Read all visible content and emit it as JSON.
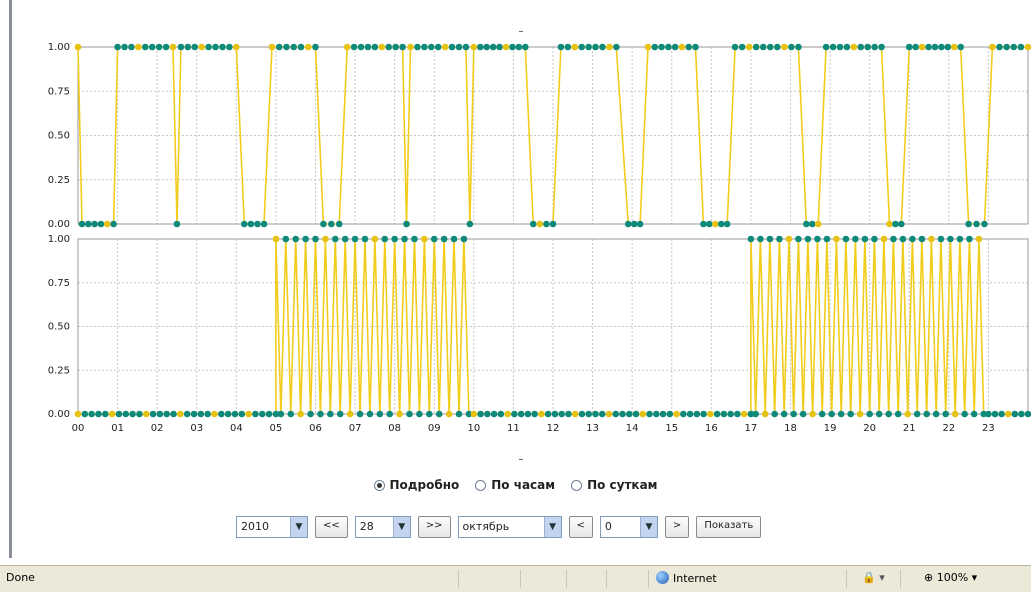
{
  "chart_data": [
    {
      "type": "line",
      "xlim": [
        0,
        24
      ],
      "ylim": [
        0,
        1
      ],
      "y_ticks": [
        "0.00",
        "0.25",
        "0.50",
        "0.75",
        "1.00"
      ],
      "line_color": "#f2cc1d",
      "marker_color": "#0f8a7a",
      "highlight_marker_color": "#e8c213",
      "segments": [
        [
          0.0,
          1
        ],
        [
          0.1,
          0
        ],
        [
          0.9,
          0
        ],
        [
          1.0,
          1
        ],
        [
          2.4,
          1
        ],
        [
          2.5,
          0
        ],
        [
          2.6,
          1
        ],
        [
          4.0,
          1
        ],
        [
          4.2,
          0
        ],
        [
          4.7,
          0
        ],
        [
          4.9,
          1
        ],
        [
          6.0,
          1
        ],
        [
          6.2,
          0
        ],
        [
          6.6,
          0
        ],
        [
          6.8,
          1
        ],
        [
          8.2,
          1
        ],
        [
          8.3,
          0
        ],
        [
          8.4,
          1
        ],
        [
          9.8,
          1
        ],
        [
          9.9,
          0
        ],
        [
          10.0,
          1
        ],
        [
          11.3,
          1
        ],
        [
          11.5,
          0
        ],
        [
          12.0,
          0
        ],
        [
          12.2,
          1
        ],
        [
          13.6,
          1
        ],
        [
          13.9,
          0
        ],
        [
          14.2,
          0
        ],
        [
          14.4,
          1
        ],
        [
          15.6,
          1
        ],
        [
          15.8,
          0
        ],
        [
          16.4,
          0
        ],
        [
          16.6,
          1
        ],
        [
          18.2,
          1
        ],
        [
          18.4,
          0
        ],
        [
          18.7,
          0
        ],
        [
          18.9,
          1
        ],
        [
          20.3,
          1
        ],
        [
          20.5,
          0
        ],
        [
          20.8,
          0
        ],
        [
          21.0,
          1
        ],
        [
          22.3,
          1
        ],
        [
          22.5,
          0
        ],
        [
          22.9,
          0
        ],
        [
          23.1,
          1
        ],
        [
          24.0,
          1
        ]
      ]
    },
    {
      "type": "line",
      "xlim": [
        0,
        24
      ],
      "ylim": [
        0,
        1
      ],
      "y_ticks": [
        "0.00",
        "0.25",
        "0.50",
        "0.75",
        "1.00"
      ],
      "x_ticks": [
        "00",
        "01",
        "02",
        "03",
        "04",
        "05",
        "06",
        "07",
        "08",
        "09",
        "10",
        "11",
        "12",
        "13",
        "14",
        "15",
        "16",
        "17",
        "18",
        "19",
        "20",
        "21",
        "22",
        "23"
      ],
      "line_color": "#f2cc1d",
      "marker_color": "#0f8a7a",
      "highlight_marker_color": "#e8c213",
      "base_segments": [
        [
          0.0,
          0
        ],
        [
          5.0,
          0
        ]
      ],
      "burst_ranges": [
        [
          5.0,
          10.0,
          0.25
        ],
        [
          17.0,
          23.0,
          0.24
        ]
      ],
      "tail_segments": [
        [
          10.0,
          0
        ],
        [
          17.0,
          0
        ],
        [
          23.0,
          0
        ],
        [
          24.0,
          0
        ]
      ]
    }
  ],
  "view_options": {
    "detail": "Подробно",
    "hours": "По часам",
    "days": "По суткам"
  },
  "controls": {
    "year": "2010",
    "day": "28",
    "month": "октябрь",
    "offset": "0",
    "prev_day": "<<",
    "next_day": ">>",
    "prev": "<",
    "next": ">",
    "show": "Показать"
  },
  "status": {
    "text": "Done",
    "zone": "Internet",
    "zoom": "100%"
  },
  "top_dash": "–",
  "bottom_dash": "–"
}
